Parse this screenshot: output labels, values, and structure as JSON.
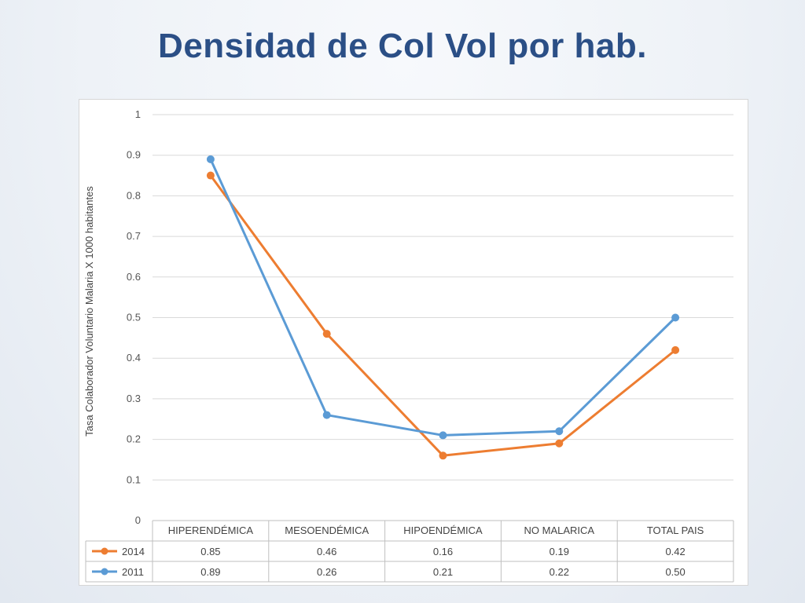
{
  "slide": {
    "title": "Densidad de Col Vol por hab."
  },
  "chart_data": {
    "type": "line",
    "title": "",
    "ylabel": "Tasa Colaborador Voluntario Malaria X 1000 habitantes",
    "xlabel": "",
    "ylim": [
      0,
      1
    ],
    "yticks": [
      "0",
      "0.1",
      "0.2",
      "0.3",
      "0.4",
      "0.5",
      "0.6",
      "0.7",
      "0.8",
      "0.9",
      "1"
    ],
    "grid": true,
    "legend": "data-table",
    "categories": [
      "HIPERENDÉMICA",
      "MESOENDÉMICA",
      "HIPOENDÉMICA",
      "NO MALARICA",
      "TOTAL PAIS"
    ],
    "series": [
      {
        "name": "2014",
        "color": "#ed7d31",
        "values": [
          0.85,
          0.46,
          0.16,
          0.19,
          0.42
        ],
        "labels": [
          "0.85",
          "0.46",
          "0.16",
          "0.19",
          "0.42"
        ]
      },
      {
        "name": "2011",
        "color": "#5b9bd5",
        "values": [
          0.89,
          0.26,
          0.21,
          0.22,
          0.5
        ],
        "labels": [
          "0.89",
          "0.26",
          "0.21",
          "0.22",
          "0.50"
        ]
      }
    ]
  }
}
